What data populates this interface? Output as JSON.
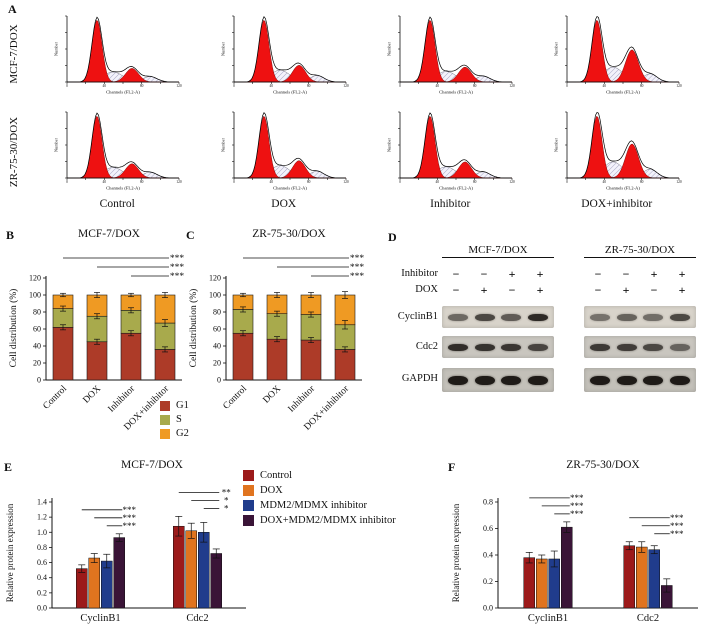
{
  "figure_labels": {
    "A": "A",
    "B": "B",
    "C": "C",
    "D": "D",
    "E": "E",
    "F": "F"
  },
  "panelA": {
    "rows": [
      {
        "label": "MCF-7/DOX",
        "plots": [
          {
            "condition": "Control",
            "g1": 1,
            "s": 0.16,
            "g2": 0.22
          },
          {
            "condition": "DOX",
            "g1": 1,
            "s": 0.19,
            "g2": 0.27
          },
          {
            "condition": "Inhibitor",
            "g1": 1,
            "s": 0.17,
            "g2": 0.24
          },
          {
            "condition": "DOX+inhibitor",
            "g1": 1,
            "s": 0.24,
            "g2": 0.52
          }
        ]
      },
      {
        "label": "ZR-75-30/DOX",
        "plots": [
          {
            "condition": "Control",
            "g1": 1,
            "s": 0.17,
            "g2": 0.23
          },
          {
            "condition": "DOX",
            "g1": 1,
            "s": 0.2,
            "g2": 0.28
          },
          {
            "condition": "Inhibitor",
            "g1": 1,
            "s": 0.18,
            "g2": 0.26
          },
          {
            "condition": "DOX+inhibitor",
            "g1": 1,
            "s": 0.26,
            "g2": 0.55
          }
        ]
      }
    ],
    "col_labels": [
      "Control",
      "DOX",
      "Inhibitor",
      "DOX+inhibitor"
    ],
    "hist_axis": {
      "ylabel": "Number",
      "xlabel": "Channels (FL2-A)",
      "xticks": [
        "0",
        "40",
        "80",
        "120"
      ]
    }
  },
  "chart_data": [
    {
      "id": "B",
      "type": "stacked-bar",
      "title": "MCF-7/DOX",
      "ylabel": "Cell distribution (%)",
      "ylim": [
        0,
        120
      ],
      "yticks": [
        0,
        20,
        40,
        60,
        80,
        100,
        120
      ],
      "categories": [
        "Control",
        "DOX",
        "Inhibitor",
        "DOX+inhibitor"
      ],
      "series": [
        {
          "name": "G1",
          "color": "#ad3b28",
          "values": [
            62,
            45,
            55,
            36
          ],
          "errors": [
            3,
            3,
            3,
            3
          ]
        },
        {
          "name": "S",
          "color": "#a8aa4c",
          "values": [
            22,
            30,
            27,
            31
          ],
          "errors": [
            3,
            3,
            3,
            4
          ]
        },
        {
          "name": "G2",
          "color": "#ef9a23",
          "values": [
            16,
            25,
            18,
            33
          ],
          "errors": [
            2,
            3,
            2,
            3
          ]
        }
      ],
      "significance": [
        {
          "from": 0,
          "to": 3,
          "label": "***"
        },
        {
          "from": 1,
          "to": 3,
          "label": "***"
        },
        {
          "from": 2,
          "to": 3,
          "label": "***"
        }
      ]
    },
    {
      "id": "C",
      "type": "stacked-bar",
      "title": "ZR-75-30/DOX",
      "ylabel": "Cell distribution (%)",
      "ylim": [
        0,
        120
      ],
      "yticks": [
        0,
        20,
        40,
        60,
        80,
        100,
        120
      ],
      "categories": [
        "Control",
        "DOX",
        "Inhibitor",
        "DOX+inhibitor"
      ],
      "series": [
        {
          "name": "G1",
          "color": "#ad3b28",
          "values": [
            55,
            48,
            47,
            36
          ],
          "errors": [
            3,
            3,
            3,
            3
          ]
        },
        {
          "name": "S",
          "color": "#a8aa4c",
          "values": [
            28,
            30,
            30,
            29
          ],
          "errors": [
            3,
            3,
            3,
            5
          ]
        },
        {
          "name": "G2",
          "color": "#ef9a23",
          "values": [
            17,
            22,
            23,
            35
          ],
          "errors": [
            2,
            3,
            3,
            4
          ]
        }
      ],
      "significance": [
        {
          "from": 0,
          "to": 3,
          "label": "***"
        },
        {
          "from": 1,
          "to": 3,
          "label": "***"
        },
        {
          "from": 2,
          "to": 3,
          "label": "***"
        }
      ]
    },
    {
      "id": "E",
      "type": "grouped-bar",
      "title": "MCF-7/DOX",
      "ylabel": "Relative protein expression",
      "ylim": [
        0,
        1.4
      ],
      "yticks": [
        0,
        0.2,
        0.4,
        0.6,
        0.8,
        1.0,
        1.2,
        1.4
      ],
      "categories": [
        "CyclinB1",
        "Cdc2"
      ],
      "series": [
        {
          "name": "Control",
          "color": "#9c1a1a",
          "values": [
            0.52,
            1.08
          ],
          "errors": [
            0.05,
            0.13
          ]
        },
        {
          "name": "DOX",
          "color": "#e0741f",
          "values": [
            0.66,
            1.02
          ],
          "errors": [
            0.06,
            0.1
          ]
        },
        {
          "name": "MDM2/MDMX inhibitor",
          "color": "#203c8c",
          "values": [
            0.62,
            1.0
          ],
          "errors": [
            0.09,
            0.13
          ]
        },
        {
          "name": "DOX+MDM2/MDMX inhibitor",
          "color": "#3a1437",
          "values": [
            0.93,
            0.72
          ],
          "errors": [
            0.05,
            0.06
          ]
        }
      ],
      "significance": [
        {
          "group": 0,
          "from": 0,
          "to": 3,
          "label": "***"
        },
        {
          "group": 0,
          "from": 1,
          "to": 3,
          "label": "***"
        },
        {
          "group": 0,
          "from": 2,
          "to": 3,
          "label": "***"
        },
        {
          "group": 1,
          "from": 0,
          "to": 3,
          "label": "**"
        },
        {
          "group": 1,
          "from": 1,
          "to": 3,
          "label": "*"
        },
        {
          "group": 1,
          "from": 2,
          "to": 3,
          "label": "*"
        }
      ]
    },
    {
      "id": "F",
      "type": "grouped-bar",
      "title": "ZR-75-30/DOX",
      "ylabel": "Relative protein expression",
      "ylim": [
        0,
        0.8
      ],
      "yticks": [
        0,
        0.2,
        0.4,
        0.6,
        0.8
      ],
      "categories": [
        "CyclinB1",
        "Cdc2"
      ],
      "series": [
        {
          "name": "Control",
          "color": "#9c1a1a",
          "values": [
            0.38,
            0.47
          ],
          "errors": [
            0.04,
            0.03
          ]
        },
        {
          "name": "DOX",
          "color": "#e0741f",
          "values": [
            0.37,
            0.46
          ],
          "errors": [
            0.03,
            0.04
          ]
        },
        {
          "name": "MDM2/MDMX inhibitor",
          "color": "#203c8c",
          "values": [
            0.37,
            0.44
          ],
          "errors": [
            0.06,
            0.03
          ]
        },
        {
          "name": "DOX+MDM2/MDMX inhibitor",
          "color": "#3a1437",
          "values": [
            0.61,
            0.17
          ],
          "errors": [
            0.04,
            0.05
          ]
        }
      ],
      "significance": [
        {
          "group": 0,
          "from": 0,
          "to": 3,
          "label": "***"
        },
        {
          "group": 0,
          "from": 1,
          "to": 3,
          "label": "***"
        },
        {
          "group": 0,
          "from": 2,
          "to": 3,
          "label": "***"
        },
        {
          "group": 1,
          "from": 0,
          "to": 3,
          "label": "***"
        },
        {
          "group": 1,
          "from": 1,
          "to": 3,
          "label": "***"
        },
        {
          "group": 1,
          "from": 2,
          "to": 3,
          "label": "***"
        }
      ]
    }
  ],
  "legendBC": {
    "entries": [
      {
        "label": "G1",
        "color": "#ad3b28"
      },
      {
        "label": "S",
        "color": "#a8aa4c"
      },
      {
        "label": "G2",
        "color": "#ef9a23"
      }
    ]
  },
  "legendEF": {
    "entries": [
      {
        "label": "Control",
        "color": "#9c1a1a"
      },
      {
        "label": "DOX",
        "color": "#e0741f"
      },
      {
        "label": "MDM2/MDMX inhibitor",
        "color": "#203c8c"
      },
      {
        "label": "DOX+MDM2/MDMX inhibitor",
        "color": "#3a1437"
      }
    ]
  },
  "panelD": {
    "groups": [
      "MCF-7/DOX",
      "ZR-75-30/DOX"
    ],
    "treatments": [
      {
        "label": "Inhibitor",
        "mcf": [
          "−",
          "−",
          "+",
          "+"
        ],
        "zr": [
          "−",
          "−",
          "+",
          "+"
        ]
      },
      {
        "label": "DOX",
        "mcf": [
          "−",
          "+",
          "−",
          "+"
        ],
        "zr": [
          "−",
          "+",
          "−",
          "+"
        ]
      }
    ],
    "proteins": [
      {
        "name": "CyclinB1",
        "bg": "#d8d3ca",
        "mcf": [
          0.55,
          0.72,
          0.62,
          0.88
        ],
        "zr": [
          0.5,
          0.58,
          0.52,
          0.72
        ]
      },
      {
        "name": "Cdc2",
        "bg": "#c9c6bf",
        "mcf": [
          0.85,
          0.82,
          0.8,
          0.72
        ],
        "zr": [
          0.78,
          0.76,
          0.7,
          0.55
        ]
      },
      {
        "name": "GAPDH",
        "bg": "#c3c0b9",
        "mcf": [
          0.95,
          0.95,
          0.95,
          0.95
        ],
        "zr": [
          0.95,
          0.95,
          0.95,
          0.95
        ]
      }
    ]
  }
}
